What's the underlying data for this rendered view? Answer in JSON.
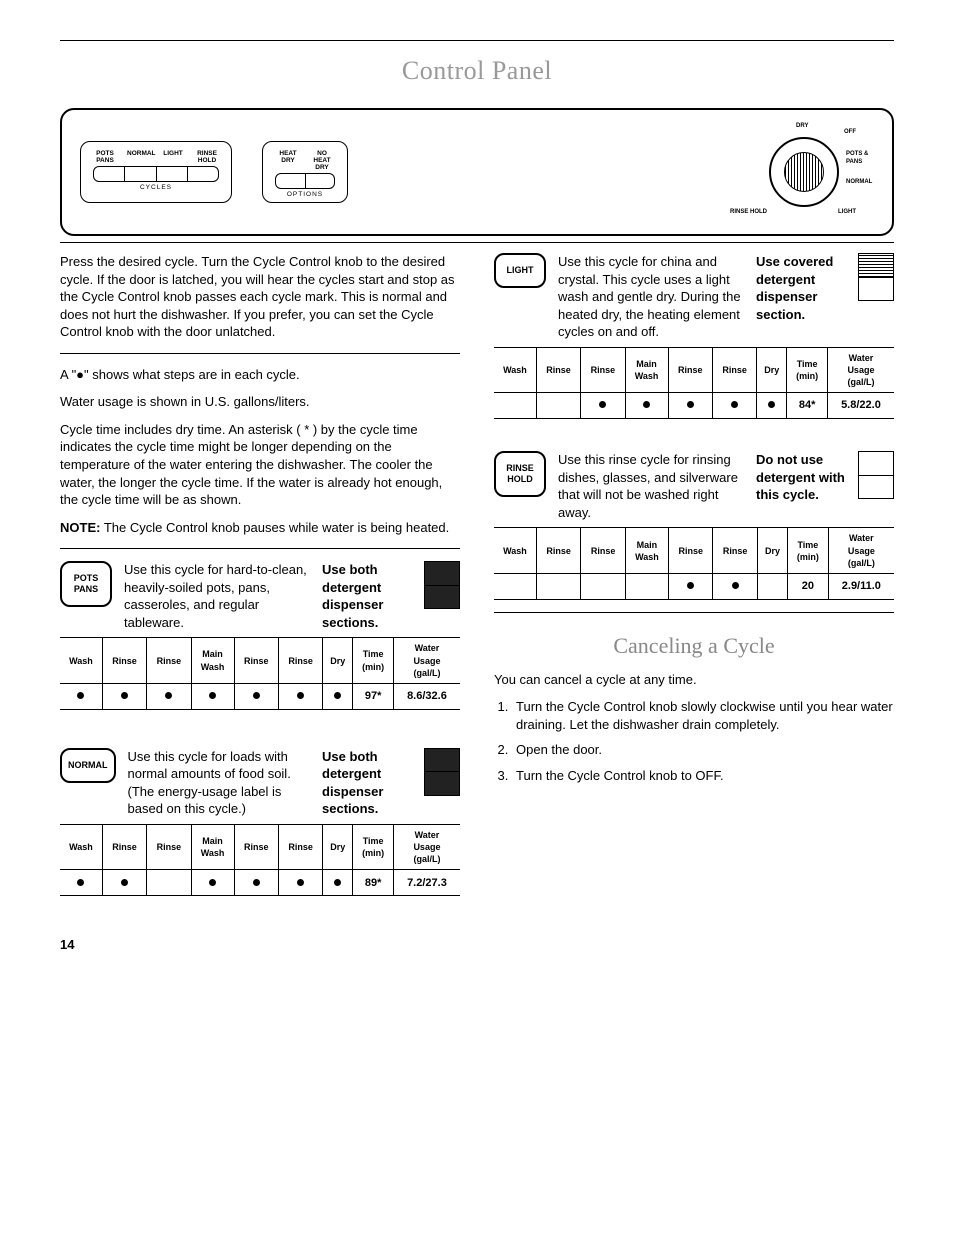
{
  "title": "Control Panel",
  "panel": {
    "cycles_label": "CYCLES",
    "options_label": "OPTIONS",
    "cycle_buttons": [
      "POTS\nPANS",
      "NORMAL",
      "LIGHT",
      "RINSE\nHOLD"
    ],
    "option_buttons": [
      "HEAT\nDRY",
      "NO HEAT\nDRY"
    ],
    "dial_labels": {
      "top": "DRY",
      "tr": "OFF",
      "r1": "POTS & PANS",
      "r2": "NORMAL",
      "br": "LIGHT",
      "bl": "RINSE HOLD"
    }
  },
  "intro": {
    "faded_heading": "",
    "p1": "Press the desired cycle. Turn the Cycle Control knob to the desired cycle. If the door is latched, you will hear the cycles start and stop as the Cycle Control knob passes each cycle mark. This is normal and does not hurt the dishwasher. If you prefer, you can set the Cycle Control knob with the door unlatched.",
    "p2": "A \"●\" shows what steps are in each cycle.",
    "p3": "Water usage is shown in U.S. gallons/liters.",
    "p4": "Cycle time includes dry time. An asterisk ( * ) by the cycle time indicates the cycle time might be longer depending on the temperature of the water entering the dishwasher. The cooler the water, the longer the cycle time. If the water is already hot enough, the cycle time will be as shown.",
    "note_label": "NOTE:",
    "note": "The Cycle Control knob pauses while water is being heated."
  },
  "table_headers": [
    "Wash",
    "Rinse",
    "Rinse",
    "Main\nWash",
    "Rinse",
    "Rinse",
    "Dry",
    "Time\n(min)",
    "Water\nUsage\n(gal/L)"
  ],
  "cycles": [
    {
      "id": "pots-pans",
      "btn": "POTS\nPANS",
      "desc": "Use this cycle for hard-to-clean, heavily-soiled pots, pans, casseroles, and regular tableware.",
      "instr": "Use both detergent dispenser sections.",
      "dispenser": "both-filled",
      "row": {
        "dots": [
          true,
          true,
          true,
          true,
          true,
          true,
          true
        ],
        "time": "97*",
        "usage": "8.6/32.6"
      }
    },
    {
      "id": "normal",
      "btn": "NORMAL",
      "desc": "Use this cycle for loads with normal amounts of food soil. (The energy-usage label is based on this cycle.)",
      "instr": "Use both detergent dispenser sections.",
      "dispenser": "both-filled",
      "row": {
        "dots": [
          true,
          true,
          false,
          true,
          true,
          true,
          true
        ],
        "time": "89*",
        "usage": "7.2/27.3"
      }
    },
    {
      "id": "light",
      "btn": "LIGHT",
      "desc": "Use this cycle for china and crystal. This cycle uses a light wash and gentle dry. During the heated dry, the heating element cycles on and off.",
      "instr": "Use covered detergent dispenser section.",
      "dispenser": "one-hatched",
      "row": {
        "dots": [
          false,
          false,
          true,
          true,
          true,
          true,
          true
        ],
        "time": "84*",
        "usage": "5.8/22.0"
      }
    },
    {
      "id": "rinse-hold",
      "btn": "RINSE\nHOLD",
      "desc": "Use this rinse cycle for rinsing dishes, glasses, and silverware that will not be washed right away.",
      "instr": "Do not use detergent with this cycle.",
      "dispenser": "empty",
      "row": {
        "dots": [
          false,
          false,
          false,
          false,
          true,
          true,
          false
        ],
        "time": "20",
        "usage": "2.9/11.0"
      }
    }
  ],
  "cancel": {
    "title": "Canceling a Cycle",
    "intro": "You can cancel a cycle at any time.",
    "steps": [
      "Turn the Cycle Control knob slowly clockwise until you hear water draining. Let the dishwasher drain completely.",
      "Open the door.",
      "Turn the Cycle Control knob to OFF."
    ]
  },
  "page_number": "14",
  "colors": {
    "text": "#000000",
    "faded": "#999999",
    "bg": "#ffffff"
  }
}
